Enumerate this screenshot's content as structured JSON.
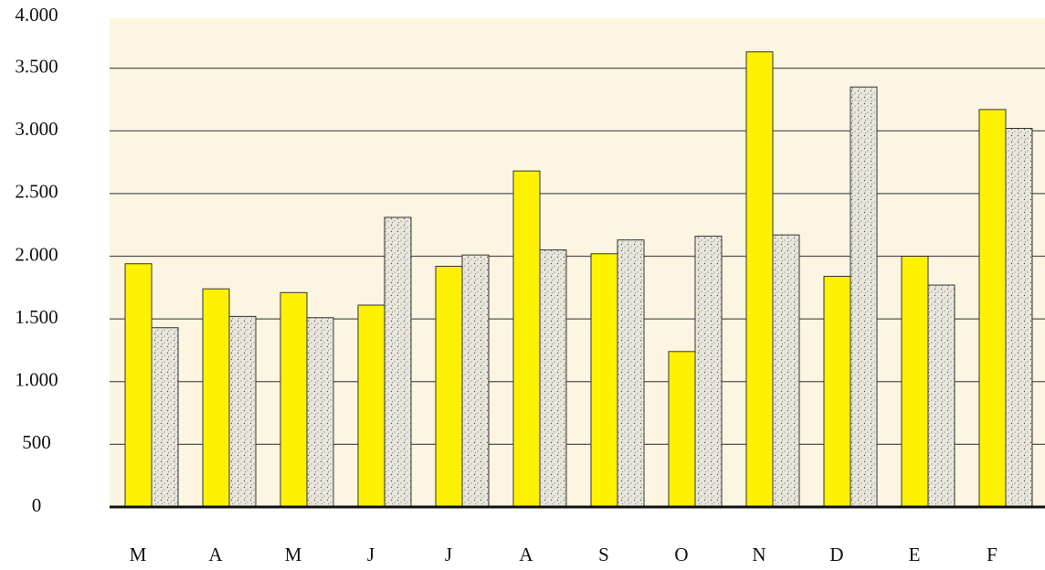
{
  "chart_data": {
    "type": "bar",
    "categories": [
      "M",
      "A",
      "M",
      "J",
      "J",
      "A",
      "S",
      "O",
      "N",
      "D",
      "E",
      "F"
    ],
    "series": [
      {
        "color": "#fff200",
        "values": [
          1940,
          1740,
          1710,
          1610,
          1920,
          2680,
          2020,
          1240,
          3630,
          1840,
          2000,
          3170
        ]
      },
      {
        "color": "#e9e6dc",
        "values": [
          1430,
          1520,
          1510,
          2310,
          2010,
          2050,
          2130,
          2160,
          2170,
          3350,
          1770,
          3020
        ]
      }
    ],
    "ylim": [
      0,
      4000
    ],
    "yticks": [
      0,
      500,
      {
        "value": 1000,
        "label": "1.000"
      },
      {
        "value": 1500,
        "label": "1.500"
      },
      {
        "value": 2000,
        "label": "2.000"
      },
      {
        "value": 2500,
        "label": "2.500"
      },
      {
        "value": 3000,
        "label": "3.000"
      },
      {
        "value": 3500,
        "label": "3.500"
      },
      {
        "value": 4000,
        "label": "4.000"
      }
    ],
    "grid": true
  }
}
